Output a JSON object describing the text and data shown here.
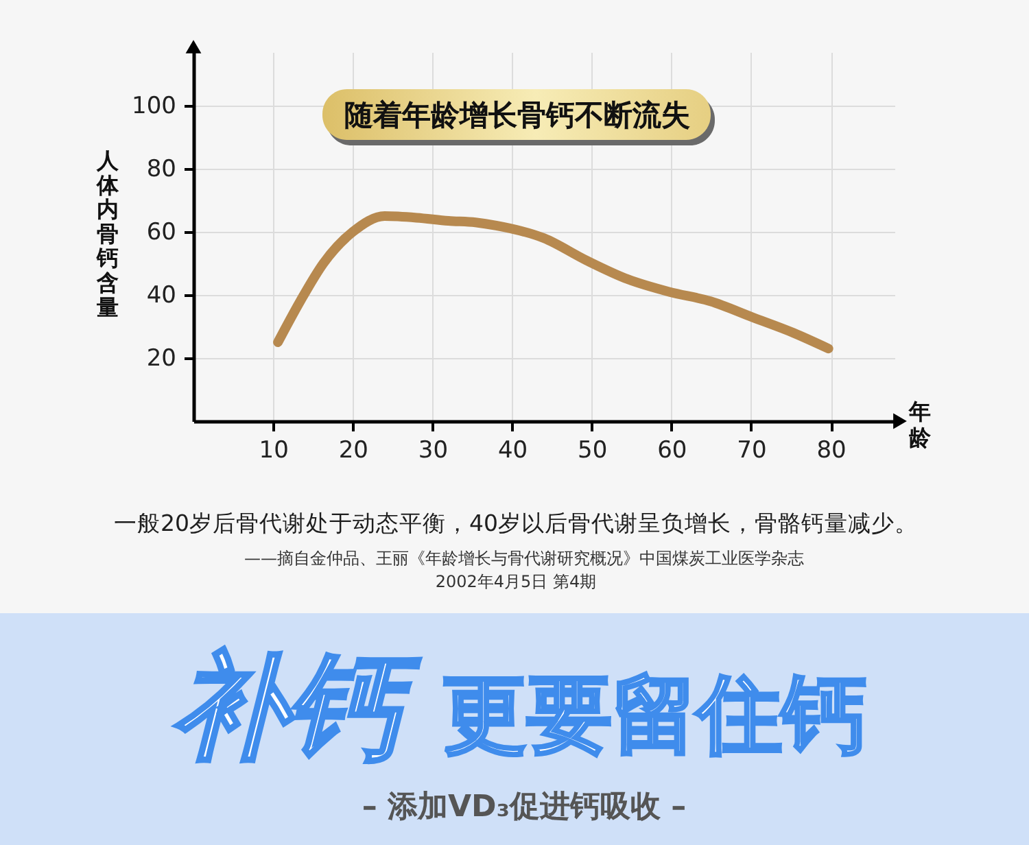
{
  "chart_data": {
    "type": "line",
    "title": "随着年龄增长骨钙不断流失",
    "xlabel": "年龄",
    "ylabel": "人体内骨钙含量",
    "x": [
      10.6,
      13.4,
      16.3,
      20,
      24,
      28,
      32,
      35.4,
      38,
      44,
      49.3,
      54.5,
      59.7,
      64.9,
      70.1,
      75.3,
      79.7
    ],
    "series": [
      {
        "color": "#b7894f",
        "values": [
          25,
          38,
          50,
          60,
          65,
          64.5,
          63.5,
          63,
          62,
          58,
          51,
          45,
          41,
          38,
          33,
          28,
          23
        ]
      }
    ],
    "xlim": [
      0,
      88
    ],
    "ylim": [
      0,
      117
    ],
    "xticks": [
      10,
      20,
      30,
      40,
      50,
      60,
      70,
      80
    ],
    "yticks": [
      20,
      40,
      60,
      80,
      100
    ],
    "grid": true,
    "line_style": "solid",
    "annotations": [
      "一般20岁后骨代谢处于动态平衡，40岁以后骨代谢呈负增长，骨骼钙量减少。",
      "——摘自金仲品、王丽《年龄增长与骨代谢研究概况》中国煤炭工业医学杂志",
      "2002年4月5日 第4期",
      "补钙",
      "更要留住钙",
      "– 添加VD₃促进钙吸收 –"
    ]
  }
}
